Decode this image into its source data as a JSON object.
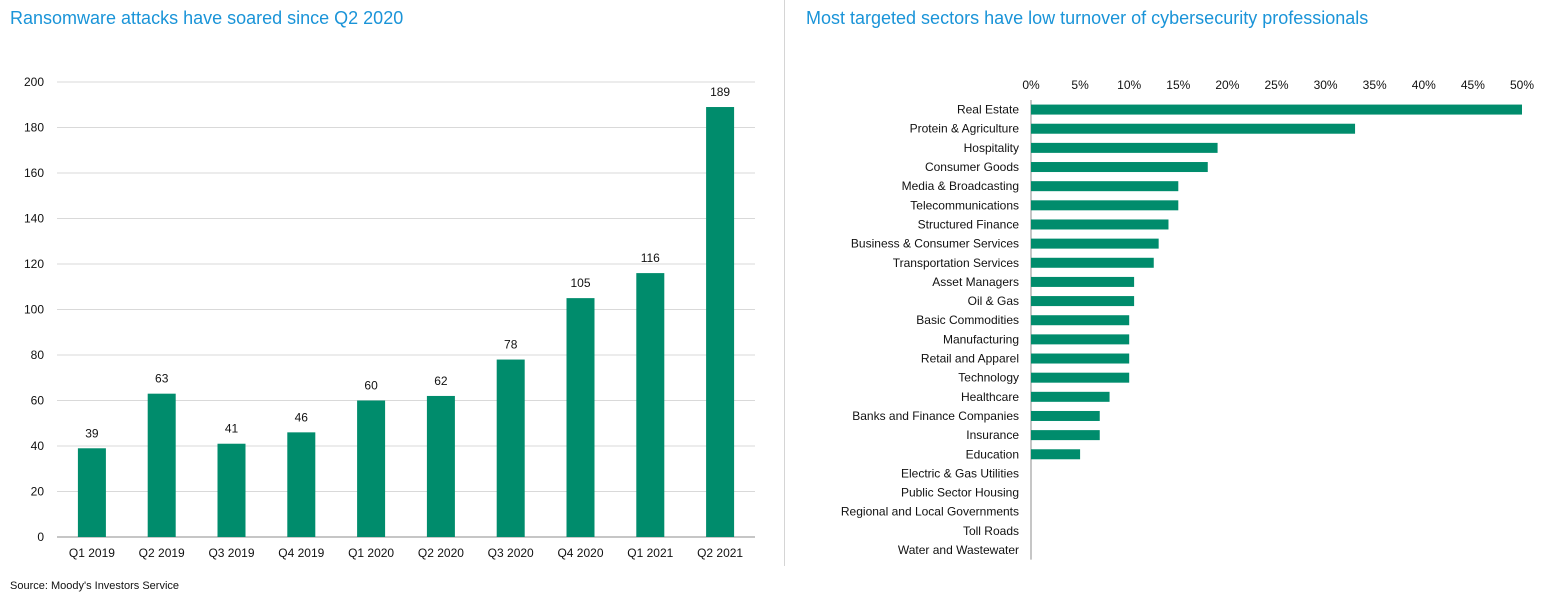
{
  "colors": {
    "bar": "#008c6c",
    "title": "#1a94d8",
    "grid": "#d9d9d9",
    "axis": "#8c8c8c"
  },
  "source": "Source: Moody's Investors Service",
  "chart_data": [
    {
      "type": "bar",
      "title": "Ransomware attacks have soared since Q2 2020",
      "categories": [
        "Q1 2019",
        "Q2 2019",
        "Q3 2019",
        "Q4 2019",
        "Q1 2020",
        "Q2 2020",
        "Q3 2020",
        "Q4 2020",
        "Q1 2021",
        "Q2 2021"
      ],
      "values": [
        39,
        63,
        41,
        46,
        60,
        62,
        78,
        105,
        116,
        189
      ],
      "ylim": [
        0,
        200
      ],
      "yticks": [
        0,
        20,
        40,
        60,
        80,
        100,
        120,
        140,
        160,
        180,
        200
      ],
      "grid": true,
      "xlabel": "",
      "ylabel": ""
    },
    {
      "type": "bar",
      "orientation": "horizontal",
      "title": "Most targeted sectors have low turnover of cybersecurity professionals",
      "categories": [
        "Real Estate",
        "Protein & Agriculture",
        "Hospitality",
        "Consumer Goods",
        "Media & Broadcasting",
        "Telecommunications",
        "Structured Finance",
        "Business & Consumer Services",
        "Transportation Services",
        "Asset Managers",
        "Oil & Gas",
        "Basic Commodities",
        "Manufacturing",
        "Retail and Apparel",
        "Technology",
        "Healthcare",
        "Banks and Finance Companies",
        "Insurance",
        "Education",
        "Electric & Gas Utilities",
        "Public Sector Housing",
        "Regional and Local Governments",
        "Toll Roads",
        "Water and Wastewater"
      ],
      "values": [
        50,
        33,
        19,
        18,
        15,
        15,
        14,
        13,
        12.5,
        10.5,
        10.5,
        10,
        10,
        10,
        10,
        8,
        7,
        7,
        5,
        0,
        0,
        0,
        0,
        0
      ],
      "xlim": [
        0,
        50
      ],
      "xticks": [
        0,
        5,
        10,
        15,
        20,
        25,
        30,
        35,
        40,
        45,
        50
      ],
      "tick_suffix": "%",
      "axis_position": "top",
      "grid": false
    }
  ]
}
